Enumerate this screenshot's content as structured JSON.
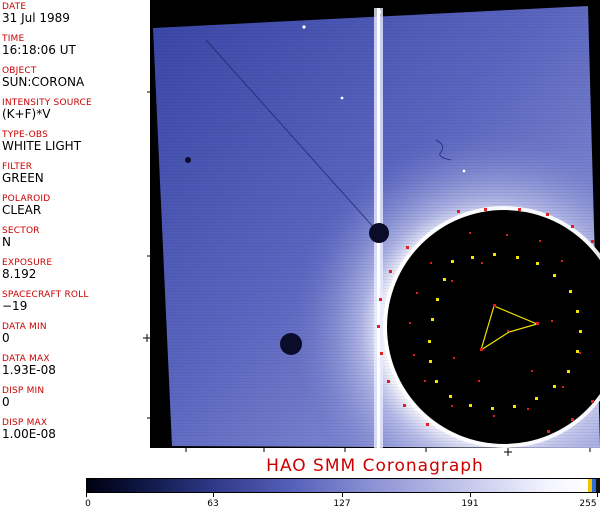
{
  "fields": [
    {
      "label": "DATE",
      "value": "31 Jul 1989"
    },
    {
      "label": "TIME",
      "value": "16:18:06 UT"
    },
    {
      "label": "OBJECT",
      "value": "SUN:CORONA"
    },
    {
      "label": "INTENSITY SOURCE",
      "value": "(K+F)*V"
    },
    {
      "label": "TYPE-OBS",
      "value": "WHITE LIGHT"
    },
    {
      "label": "FILTER",
      "value": "GREEN"
    },
    {
      "label": "POLAROID",
      "value": "CLEAR"
    },
    {
      "label": "SECTOR",
      "value": "N"
    },
    {
      "label": "EXPOSURE",
      "value": "8.192"
    },
    {
      "label": "SPACECRAFT ROLL",
      "value": "−19"
    },
    {
      "label": "DATA MIN",
      "value": "0"
    },
    {
      "label": "DATA MAX",
      "value": "1.93E-08"
    },
    {
      "label": "DISP MIN",
      "value": "0"
    },
    {
      "label": "DISP MAX",
      "value": "1.00E-08"
    }
  ],
  "caption": "HAO   SMM Coronagraph",
  "colorbar": {
    "labels": [
      "0",
      "63",
      "127",
      "191",
      "255"
    ],
    "colors": {
      "low": "#000010",
      "mid": "#5560b8",
      "high": "#ffffff",
      "overlay_red": "#e02020",
      "overlay_yellow": "#f2e600"
    }
  }
}
